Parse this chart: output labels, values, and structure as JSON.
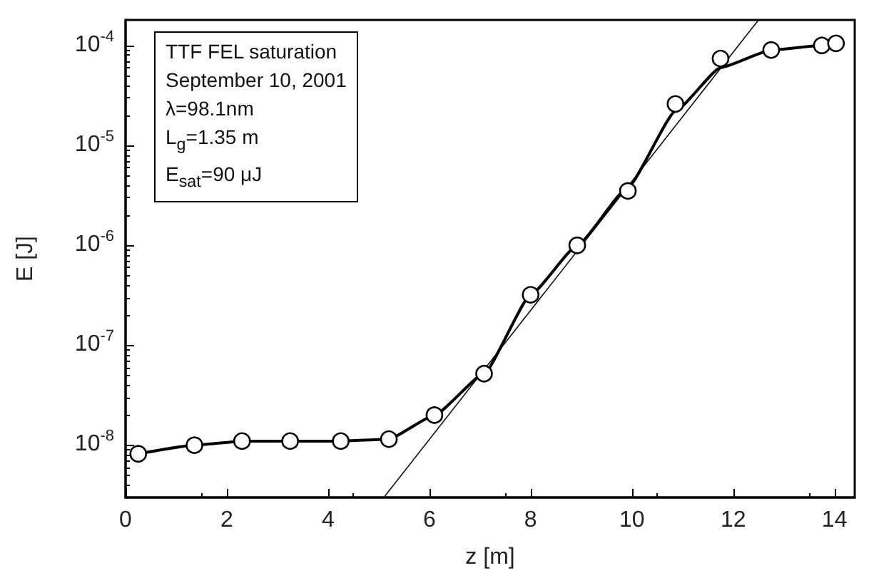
{
  "chart_data": {
    "type": "line",
    "xlabel": "z [m]",
    "ylabel": "E [J]",
    "log": "y",
    "xlim": [
      0,
      14.4
    ],
    "xticks": [
      0,
      2,
      4,
      6,
      8,
      10,
      12,
      14
    ],
    "ylim": [
      3e-09,
      0.00018
    ],
    "yticks": [
      {
        "value": 1e-08,
        "label": "10$^{-8}$"
      },
      {
        "value": 1e-07,
        "label": "10$^{-7}$"
      },
      {
        "value": 1e-06,
        "label": "10$^{-6}$"
      },
      {
        "value": 1e-05,
        "label": "10$^{-5}$"
      },
      {
        "value": 0.0001,
        "label": "10$^{-4}$"
      }
    ],
    "annotations": [
      "TTF FEL saturation",
      "September 10, 2001",
      "λ=98.1nm",
      "L$_{g}$=1.35 m",
      "E$_{sat}$=90 μJ"
    ],
    "series": [
      {
        "type": "line",
        "color": "#111111",
        "marker": "none",
        "line_style": "solid",
        "x": [
          5.1,
          12.5
        ],
        "values": [
          3e-09,
          0.00018
        ]
      },
      {
        "type": "line",
        "color": "#000000",
        "marker": "none",
        "line_style": "solid",
        "x": [
          0.25,
          1.36,
          2.3,
          3.25,
          4.25,
          5.2,
          6.1,
          7.08,
          8.0,
          8.92,
          9.92,
          10.86,
          11.75,
          12.75,
          13.75,
          14.03
        ],
        "values": [
          8.2e-09,
          1e-08,
          1.1e-08,
          1.1e-08,
          1.1e-08,
          1.15e-08,
          2e-08,
          5.2e-08,
          3.2e-07,
          1e-06,
          3.8e-06,
          2.2e-05,
          6e-05,
          9e-05,
          0.0001,
          0.000105
        ]
      },
      {
        "type": "scatter",
        "color": "#000000",
        "marker": "circle",
        "x": [
          0.25,
          1.36,
          2.3,
          3.25,
          4.25,
          5.2,
          6.1,
          7.08,
          8.0,
          8.92,
          9.92,
          10.86,
          11.75,
          12.75,
          13.75,
          14.03
        ],
        "values": [
          8.2e-09,
          1e-08,
          1.1e-08,
          1.1e-08,
          1.1e-08,
          1.15e-08,
          2e-08,
          5.2e-08,
          3.2e-07,
          1e-06,
          3.5e-06,
          2.6e-05,
          7.4e-05,
          9e-05,
          0.0001,
          0.000105
        ]
      }
    ]
  }
}
